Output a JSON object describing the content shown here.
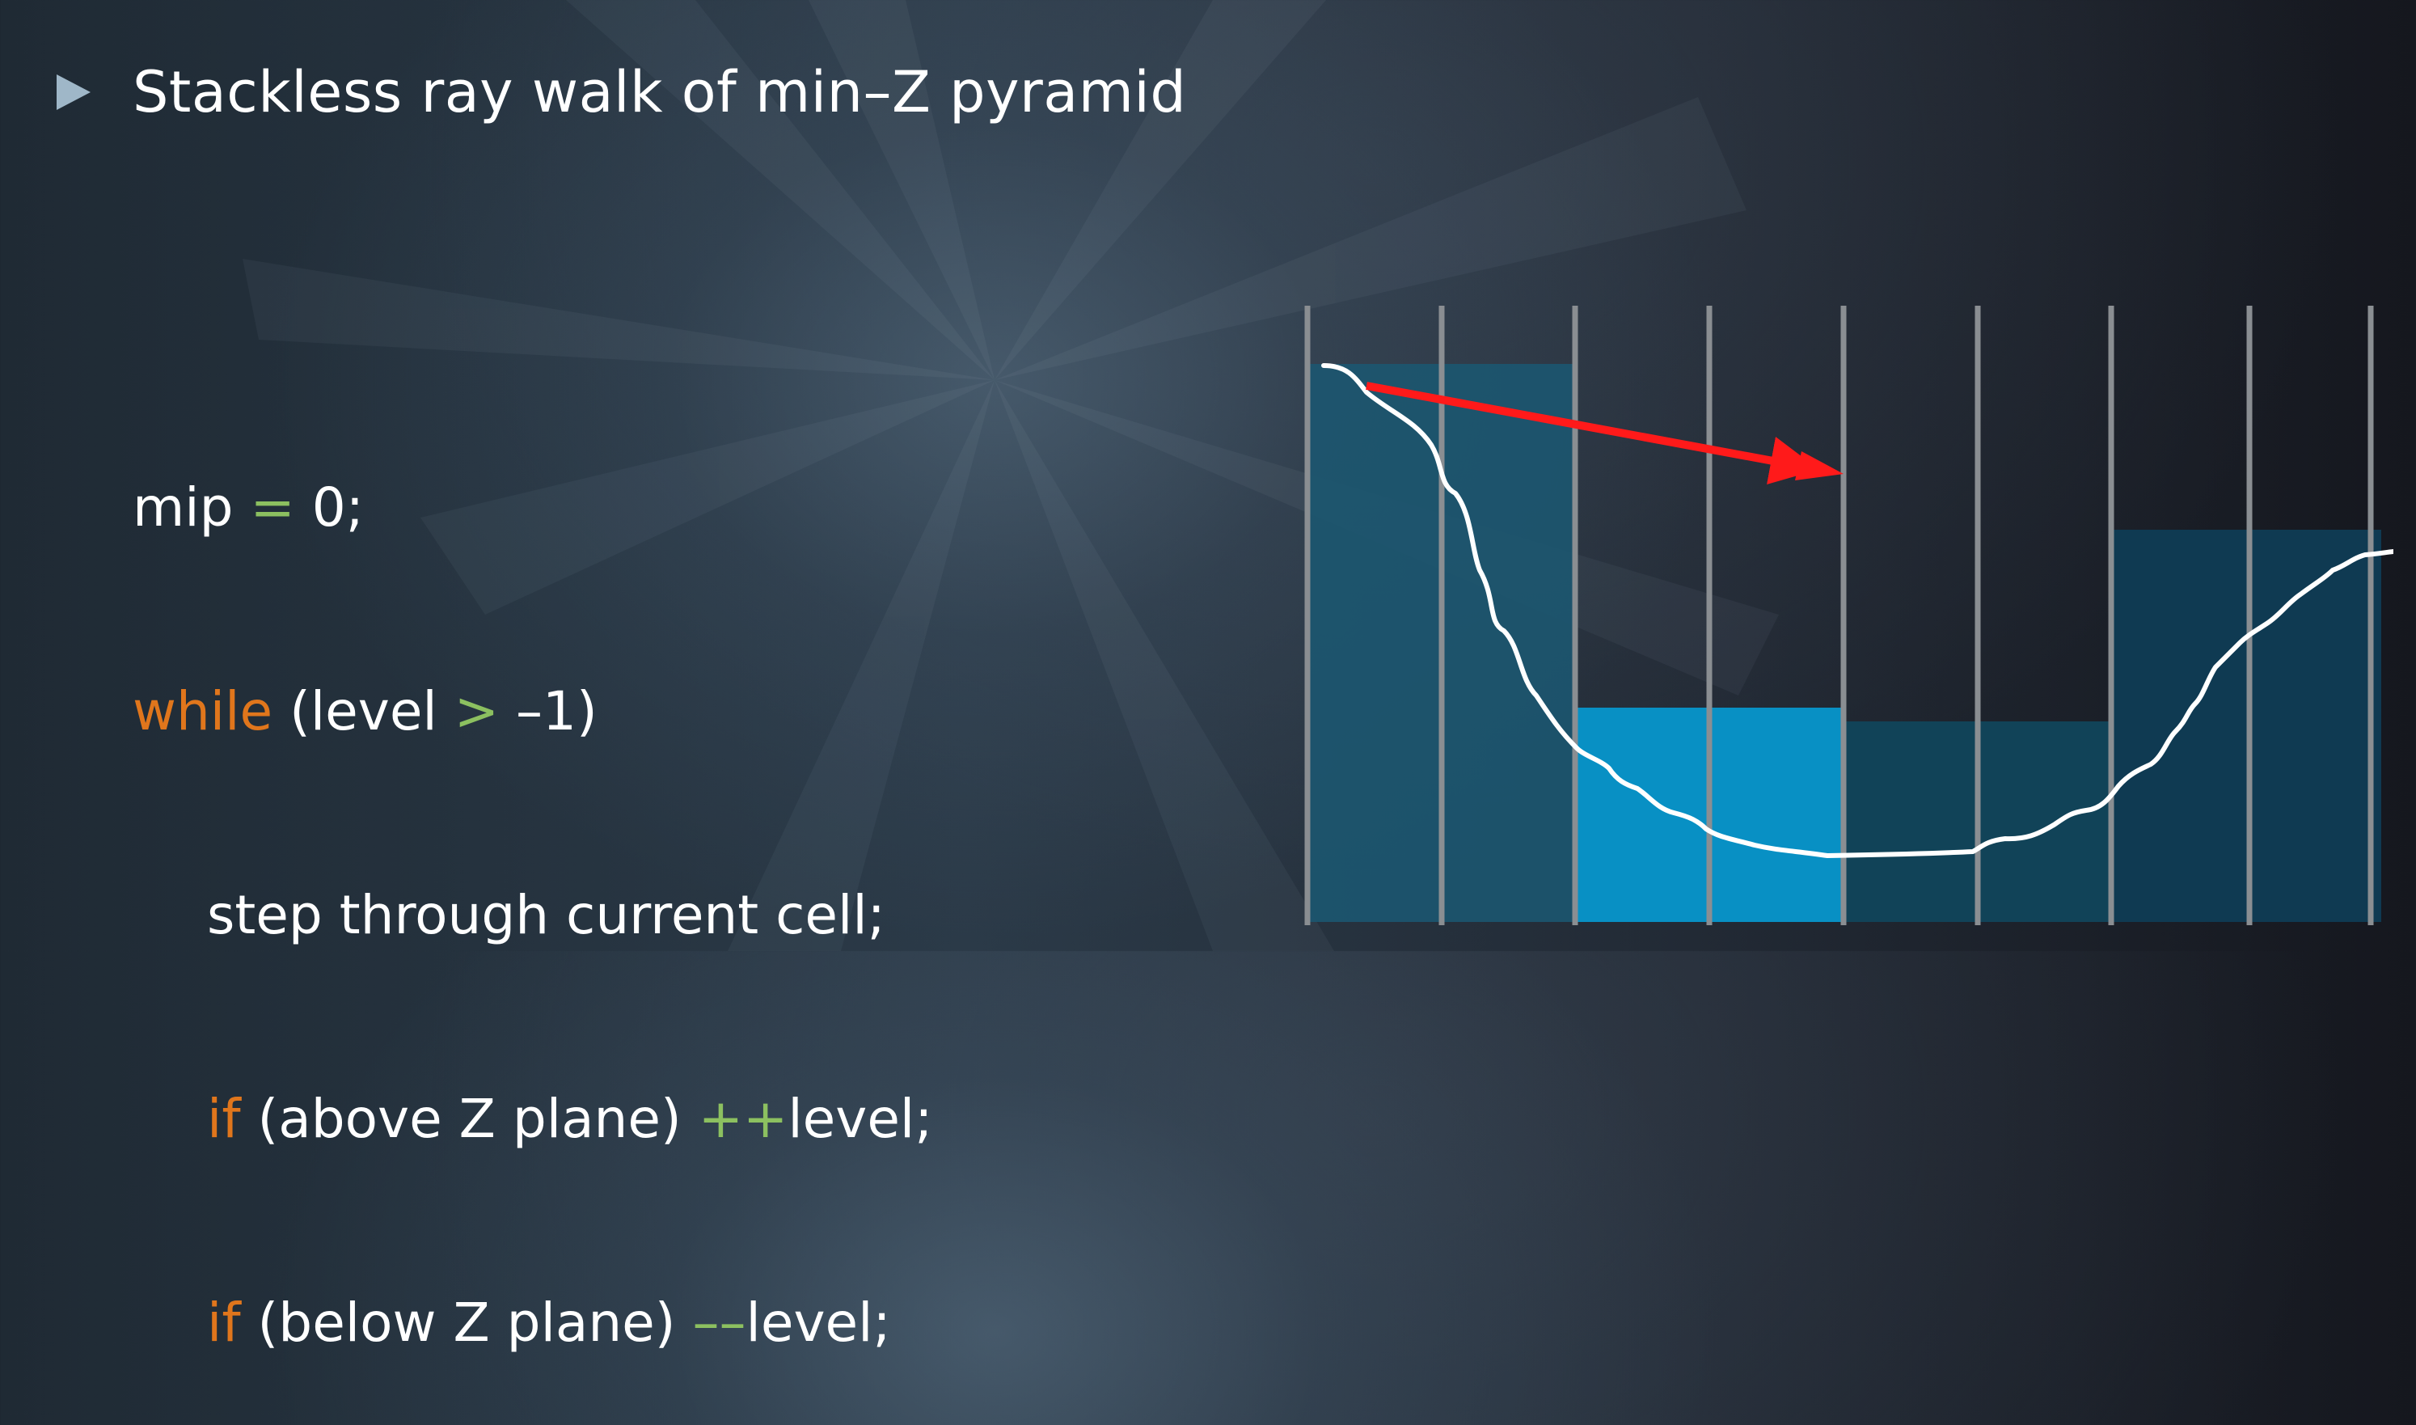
{
  "slide": {
    "title": "Stackless ray walk of min–Z pyramid",
    "bullet_icon": "triangle-bullet-icon"
  },
  "code": {
    "line1": {
      "text1": "mip ",
      "op": "=",
      "text2": " 0;"
    },
    "line2": {
      "kw": "while",
      "text1": " (level ",
      "op": ">",
      "text2": " –1)"
    },
    "line3": {
      "text": "step through current cell;"
    },
    "line4": {
      "kw": "if",
      "text1": " (above Z plane) ",
      "op": "++",
      "text2": "level;"
    },
    "line5": {
      "kw": "if",
      "text1": " (below Z plane) ",
      "op": "––",
      "text2": "level;"
    }
  },
  "colors": {
    "keyword": "#e0761c",
    "operator": "#8cc060",
    "text": "#ffffff",
    "grid_line": "#8a8e92",
    "ray_arrow": "#ff1a1a",
    "depth_curve": "#ffffff",
    "cell_dark": "#1c5670",
    "cell_bright": "#0890c4",
    "cell_mid": "#114358",
    "cell_right": "#0f3a52"
  }
}
